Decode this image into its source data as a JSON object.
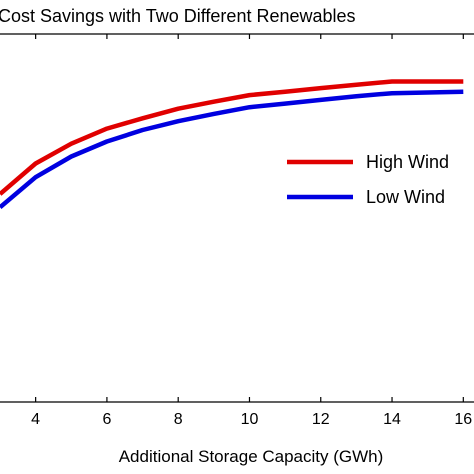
{
  "chart_data": {
    "type": "line",
    "title": "Cost Savings with Two Different Renewables",
    "xlabel": "Additional Storage Capacity (GWh)",
    "ylabel": "",
    "xlim": [
      3,
      16
    ],
    "x_ticks": [
      4,
      6,
      8,
      10,
      12,
      14,
      16
    ],
    "x_tick_labels": [
      "4",
      "6",
      "8",
      "10",
      "12",
      "14",
      "16"
    ],
    "ylim": [
      0,
      1
    ],
    "grid": false,
    "legend_position": "right",
    "series": [
      {
        "name": "High Wind",
        "color": "#e00000",
        "x": [
          3,
          4,
          5,
          6,
          7,
          8,
          9,
          10,
          11,
          12,
          13,
          14,
          15,
          16
        ],
        "y": [
          0.565,
          0.648,
          0.702,
          0.743,
          0.771,
          0.797,
          0.816,
          0.834,
          0.843,
          0.853,
          0.862,
          0.871,
          0.871,
          0.871
        ]
      },
      {
        "name": "Low Wind",
        "color": "#0000e0",
        "x": [
          3,
          4,
          5,
          6,
          7,
          8,
          9,
          10,
          11,
          12,
          13,
          14,
          15,
          16
        ],
        "y": [
          0.529,
          0.611,
          0.667,
          0.708,
          0.739,
          0.763,
          0.783,
          0.801,
          0.811,
          0.821,
          0.831,
          0.839,
          0.841,
          0.843
        ]
      }
    ]
  }
}
